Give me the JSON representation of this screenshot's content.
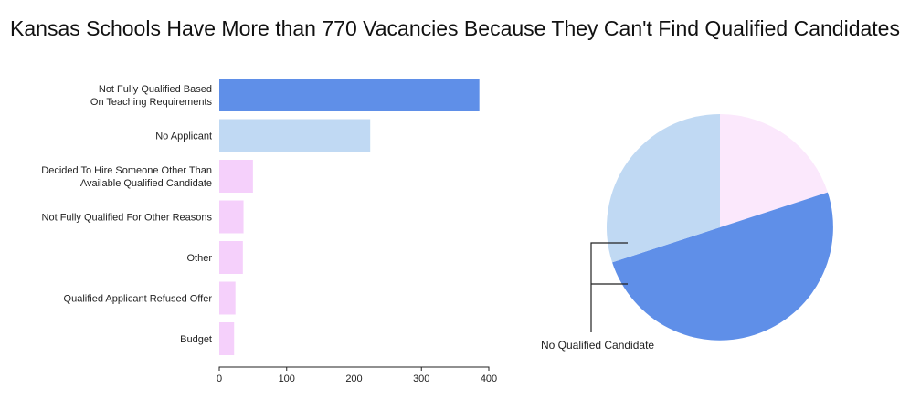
{
  "title": "Kansas Schools Have More than 770 Vacancies Because They Can't Find Qualified Candidates",
  "colors": {
    "dark_blue": "#5f8fe8",
    "light_blue": "#c0d9f3",
    "pink": "#f5d0fb",
    "pale_pink": "#fbe8fc",
    "axis": "#222222"
  },
  "chart_data": [
    {
      "type": "bar",
      "orientation": "horizontal",
      "categories": [
        [
          "Not Fully Qualified Based",
          "On Teaching Requirements"
        ],
        [
          "No Applicant"
        ],
        [
          "Decided To Hire Someone Other Than",
          "Available Qualified Candidate"
        ],
        [
          "Not Fully Qualified For Other Reasons"
        ],
        [
          "Other"
        ],
        [
          "Qualified Applicant Refused Offer"
        ],
        [
          "Budget"
        ]
      ],
      "values": [
        386,
        224,
        50,
        36,
        35,
        24,
        22
      ],
      "bar_colors": [
        "#5f8fe8",
        "#c0d9f3",
        "#f5d0fb",
        "#f5d0fb",
        "#f5d0fb",
        "#f5d0fb",
        "#f5d0fb"
      ],
      "xlim": [
        0,
        400
      ],
      "xticks": [
        0,
        100,
        200,
        300,
        400
      ],
      "xlabel": "",
      "ylabel": ""
    },
    {
      "type": "pie",
      "start_angle_deg": 0,
      "direction": "clockwise",
      "slices": [
        {
          "value": 0.2,
          "color": "#fbe8fc"
        },
        {
          "value": 0.5,
          "color": "#5f8fe8"
        },
        {
          "value": 0.3,
          "color": "#c0d9f3"
        }
      ],
      "annotation": "No Qualified Candidate"
    }
  ]
}
